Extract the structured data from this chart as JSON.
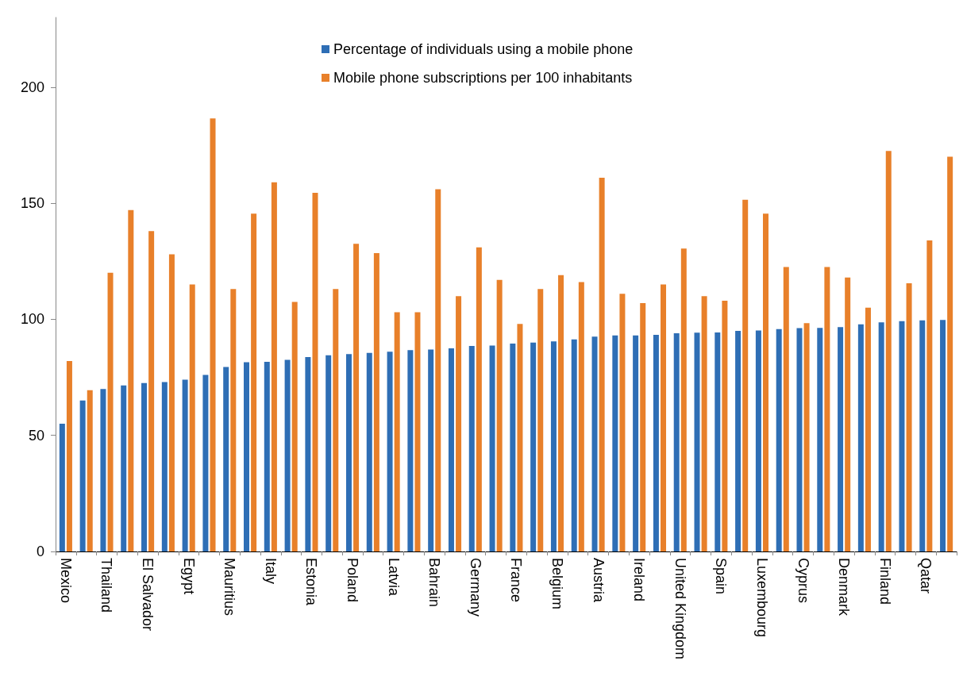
{
  "chart_data": {
    "type": "bar",
    "categories": [
      "Mexico",
      null,
      "Thailand",
      null,
      "El Salvador",
      null,
      "Egypt",
      null,
      "Mauritius",
      null,
      "Italy",
      null,
      "Estonia",
      null,
      "Poland",
      null,
      "Latvia",
      null,
      "Bahrain",
      null,
      "Germany",
      null,
      "France",
      null,
      "Belgium",
      null,
      "Austria",
      null,
      "Ireland",
      null,
      "United Kingdom",
      null,
      "Spain",
      null,
      "Luxembourg",
      null,
      "Cyprus",
      null,
      "Denmark",
      null,
      "Finland",
      null,
      "Qatar",
      null
    ],
    "series": [
      {
        "name": "Percentage of individuals using a mobile phone",
        "color": "#2e6eb5",
        "values": [
          55,
          65,
          70,
          71.5,
          72.5,
          73,
          74,
          76,
          79.5,
          81.5,
          81.7,
          82.5,
          83.7,
          84.5,
          85,
          85.5,
          86,
          86.7,
          87,
          87.5,
          88.5,
          88.7,
          89.5,
          90,
          90.5,
          91.3,
          92.5,
          93,
          93,
          93.3,
          94,
          94.2,
          94.3,
          95,
          95.2,
          95.8,
          96.2,
          96.3,
          96.6,
          97.8,
          98.7,
          99.2,
          99.5,
          99.7
        ]
      },
      {
        "name": "Mobile phone subscriptions per 100 inhabitants",
        "color": "#e8802a",
        "values": [
          82,
          69.5,
          120,
          147,
          138,
          128,
          115,
          186.5,
          113,
          145.5,
          159,
          107.5,
          154.5,
          113,
          132.5,
          128.5,
          103,
          103,
          156,
          110,
          131,
          117,
          98,
          113,
          119,
          116,
          161,
          111,
          107,
          115,
          130.5,
          110,
          108,
          151.5,
          145.5,
          122.5,
          98.3,
          122.5,
          118,
          105,
          172.5,
          115.5,
          134,
          170
        ]
      }
    ],
    "ylim": [
      0,
      230
    ],
    "yticks": [
      0,
      50,
      100,
      150,
      200
    ],
    "grid": false,
    "legend": "top"
  }
}
